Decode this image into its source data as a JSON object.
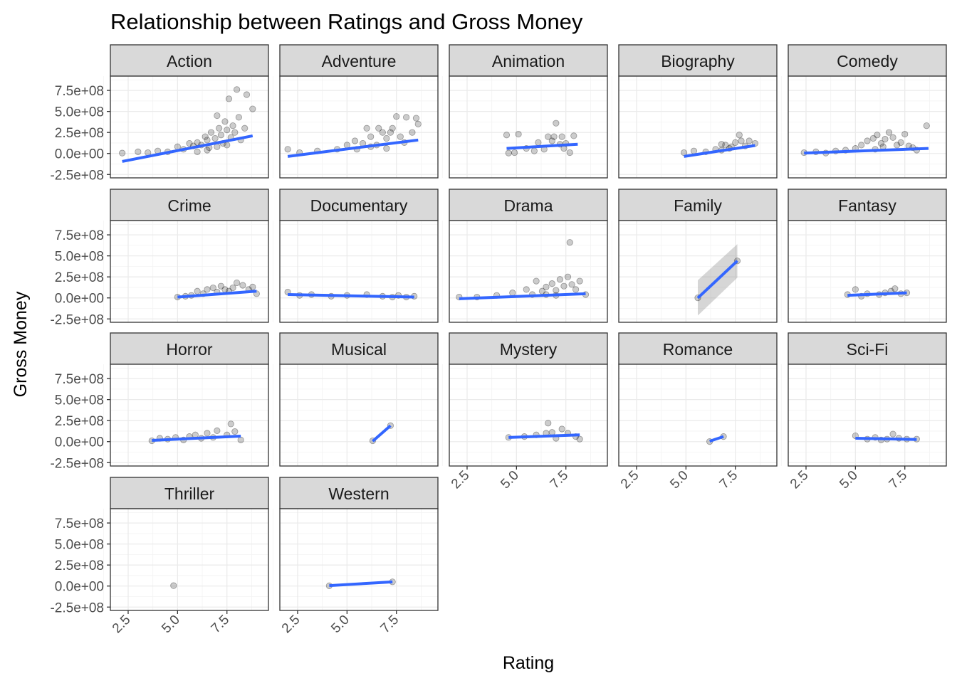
{
  "chart_data": {
    "type": "scatter",
    "title": "Relationship between Ratings and Gross Money",
    "xlabel": "Rating",
    "ylabel": "Gross Money",
    "xlim": [
      1.6,
      9.6
    ],
    "ylim": [
      -290000000,
      920000000
    ],
    "x_ticks": [
      2.5,
      5.0,
      7.5
    ],
    "x_tick_labels": [
      "2.5",
      "5.0",
      "7.5"
    ],
    "y_ticks": [
      -250000000,
      0,
      250000000,
      500000000,
      750000000
    ],
    "y_tick_labels": [
      "-2.5e+08",
      "0.0e+00",
      "2.5e+08",
      "5.0e+08",
      "7.5e+08"
    ],
    "grid": true,
    "facets": [
      {
        "name": "Action",
        "points": [
          [
            2.2,
            5000000.0
          ],
          [
            3.0,
            20000000.0
          ],
          [
            3.5,
            10000000.0
          ],
          [
            4.0,
            30000000.0
          ],
          [
            4.5,
            20000000.0
          ],
          [
            5.0,
            80000000.0
          ],
          [
            5.3,
            50000000.0
          ],
          [
            5.6,
            120000000.0
          ],
          [
            5.8,
            90000000.0
          ],
          [
            6.0,
            130000000.0
          ],
          [
            6.2,
            100000000.0
          ],
          [
            6.4,
            200000000.0
          ],
          [
            6.5,
            160000000.0
          ],
          [
            6.6,
            70000000.0
          ],
          [
            6.7,
            250000000.0
          ],
          [
            6.9,
            180000000.0
          ],
          [
            7.0,
            450000000.0
          ],
          [
            7.1,
            300000000.0
          ],
          [
            7.2,
            220000000.0
          ],
          [
            7.3,
            120000000.0
          ],
          [
            7.4,
            380000000.0
          ],
          [
            7.5,
            280000000.0
          ],
          [
            7.6,
            650000000.0
          ],
          [
            7.7,
            190000000.0
          ],
          [
            7.8,
            330000000.0
          ],
          [
            7.9,
            250000000.0
          ],
          [
            8.0,
            760000000.0
          ],
          [
            8.1,
            430000000.0
          ],
          [
            8.2,
            160000000.0
          ],
          [
            8.4,
            300000000.0
          ],
          [
            8.5,
            700000000.0
          ],
          [
            8.8,
            530000000.0
          ],
          [
            6.0,
            20000000.0
          ],
          [
            6.5,
            40000000.0
          ],
          [
            7.0,
            80000000.0
          ],
          [
            7.5,
            100000000.0
          ]
        ],
        "fit": [
          [
            2.2,
            -95000000.0
          ],
          [
            8.8,
            210000000.0
          ]
        ]
      },
      {
        "name": "Adventure",
        "points": [
          [
            2.0,
            50000000.0
          ],
          [
            2.6,
            10000000.0
          ],
          [
            3.5,
            30000000.0
          ],
          [
            4.5,
            50000000.0
          ],
          [
            5.0,
            100000000.0
          ],
          [
            5.4,
            150000000.0
          ],
          [
            5.8,
            120000000.0
          ],
          [
            6.0,
            300000000.0
          ],
          [
            6.2,
            200000000.0
          ],
          [
            6.5,
            100000000.0
          ],
          [
            6.6,
            300000000.0
          ],
          [
            6.8,
            250000000.0
          ],
          [
            7.0,
            180000000.0
          ],
          [
            7.2,
            250000000.0
          ],
          [
            7.3,
            300000000.0
          ],
          [
            7.5,
            440000000.0
          ],
          [
            7.7,
            200000000.0
          ],
          [
            7.9,
            130000000.0
          ],
          [
            8.0,
            430000000.0
          ],
          [
            8.3,
            250000000.0
          ],
          [
            8.5,
            420000000.0
          ],
          [
            8.6,
            350000000.0
          ],
          [
            5.5,
            50000000.0
          ],
          [
            6.2,
            80000000.0
          ],
          [
            7.0,
            60000000.0
          ]
        ],
        "fit": [
          [
            2.0,
            -35000000.0
          ],
          [
            8.6,
            160000000.0
          ]
        ]
      },
      {
        "name": "Animation",
        "points": [
          [
            4.5,
            220000000.0
          ],
          [
            4.6,
            5000000.0
          ],
          [
            4.9,
            10000000.0
          ],
          [
            5.1,
            230000000.0
          ],
          [
            5.5,
            60000000.0
          ],
          [
            5.9,
            30000000.0
          ],
          [
            6.1,
            130000000.0
          ],
          [
            6.4,
            50000000.0
          ],
          [
            6.6,
            200000000.0
          ],
          [
            6.8,
            150000000.0
          ],
          [
            6.9,
            200000000.0
          ],
          [
            7.0,
            360000000.0
          ],
          [
            7.2,
            110000000.0
          ],
          [
            7.3,
            200000000.0
          ],
          [
            7.5,
            120000000.0
          ],
          [
            7.7,
            10000000.0
          ],
          [
            7.9,
            210000000.0
          ],
          [
            7.4,
            60000000.0
          ]
        ],
        "fit": [
          [
            4.5,
            60000000.0
          ],
          [
            8.1,
            110000000.0
          ]
        ]
      },
      {
        "name": "Biography",
        "points": [
          [
            4.9,
            10000000.0
          ],
          [
            5.4,
            30000000.0
          ],
          [
            6.0,
            20000000.0
          ],
          [
            6.5,
            50000000.0
          ],
          [
            6.8,
            40000000.0
          ],
          [
            7.0,
            100000000.0
          ],
          [
            7.3,
            80000000.0
          ],
          [
            7.5,
            130000000.0
          ],
          [
            7.7,
            220000000.0
          ],
          [
            7.8,
            150000000.0
          ],
          [
            8.0,
            90000000.0
          ],
          [
            8.2,
            150000000.0
          ],
          [
            8.5,
            120000000.0
          ],
          [
            7.2,
            60000000.0
          ],
          [
            6.8,
            110000000.0
          ]
        ],
        "fit": [
          [
            4.9,
            -35000000.0
          ],
          [
            8.5,
            95000000.0
          ]
        ]
      },
      {
        "name": "Comedy",
        "points": [
          [
            2.4,
            10000000.0
          ],
          [
            3.0,
            20000000.0
          ],
          [
            3.5,
            5000000.0
          ],
          [
            4.0,
            30000000.0
          ],
          [
            4.5,
            40000000.0
          ],
          [
            5.0,
            60000000.0
          ],
          [
            5.3,
            100000000.0
          ],
          [
            5.6,
            150000000.0
          ],
          [
            5.9,
            180000000.0
          ],
          [
            6.1,
            220000000.0
          ],
          [
            6.3,
            120000000.0
          ],
          [
            6.5,
            170000000.0
          ],
          [
            6.7,
            250000000.0
          ],
          [
            6.9,
            190000000.0
          ],
          [
            7.1,
            100000000.0
          ],
          [
            7.3,
            130000000.0
          ],
          [
            7.5,
            230000000.0
          ],
          [
            7.7,
            90000000.0
          ],
          [
            7.9,
            70000000.0
          ],
          [
            8.1,
            40000000.0
          ],
          [
            8.6,
            330000000.0
          ],
          [
            6.0,
            50000000.0
          ],
          [
            6.4,
            80000000.0
          ]
        ],
        "fit": [
          [
            2.4,
            5000000.0
          ],
          [
            8.7,
            60000000.0
          ]
        ]
      },
      {
        "name": "Crime",
        "points": [
          [
            5.0,
            10000000.0
          ],
          [
            5.4,
            20000000.0
          ],
          [
            5.7,
            30000000.0
          ],
          [
            6.0,
            80000000.0
          ],
          [
            6.3,
            50000000.0
          ],
          [
            6.5,
            100000000.0
          ],
          [
            6.8,
            120000000.0
          ],
          [
            7.0,
            70000000.0
          ],
          [
            7.2,
            140000000.0
          ],
          [
            7.4,
            100000000.0
          ],
          [
            7.6,
            80000000.0
          ],
          [
            7.8,
            120000000.0
          ],
          [
            8.0,
            180000000.0
          ],
          [
            8.3,
            150000000.0
          ],
          [
            8.6,
            100000000.0
          ],
          [
            8.8,
            130000000.0
          ],
          [
            9.0,
            50000000.0
          ]
        ],
        "fit": [
          [
            5.0,
            10000000.0
          ],
          [
            9.0,
            80000000.0
          ]
        ]
      },
      {
        "name": "Documentary",
        "points": [
          [
            2.0,
            70000000.0
          ],
          [
            2.6,
            30000000.0
          ],
          [
            3.2,
            40000000.0
          ],
          [
            4.2,
            20000000.0
          ],
          [
            5.0,
            30000000.0
          ],
          [
            6.0,
            40000000.0
          ],
          [
            6.8,
            20000000.0
          ],
          [
            7.3,
            10000000.0
          ],
          [
            7.6,
            30000000.0
          ],
          [
            8.0,
            10000000.0
          ],
          [
            8.4,
            20000000.0
          ]
        ],
        "fit": [
          [
            2.0,
            40000000.0
          ],
          [
            8.4,
            10000000.0
          ]
        ]
      },
      {
        "name": "Drama",
        "points": [
          [
            2.1,
            10000000.0
          ],
          [
            3.0,
            10000000.0
          ],
          [
            4.0,
            30000000.0
          ],
          [
            4.8,
            60000000.0
          ],
          [
            5.5,
            100000000.0
          ],
          [
            5.8,
            40000000.0
          ],
          [
            6.0,
            200000000.0
          ],
          [
            6.3,
            80000000.0
          ],
          [
            6.5,
            130000000.0
          ],
          [
            6.8,
            170000000.0
          ],
          [
            7.0,
            90000000.0
          ],
          [
            7.2,
            220000000.0
          ],
          [
            7.4,
            140000000.0
          ],
          [
            7.6,
            250000000.0
          ],
          [
            7.7,
            660000000.0
          ],
          [
            7.8,
            160000000.0
          ],
          [
            8.0,
            100000000.0
          ],
          [
            8.2,
            200000000.0
          ],
          [
            8.5,
            40000000.0
          ],
          [
            6.5,
            40000000.0
          ],
          [
            7.0,
            30000000.0
          ]
        ],
        "fit": [
          [
            2.1,
            -10000000.0
          ],
          [
            8.5,
            50000000.0
          ]
        ]
      },
      {
        "name": "Family",
        "points": [
          [
            5.6,
            1000000.0
          ],
          [
            7.6,
            440000000.0
          ]
        ],
        "fit": [
          [
            5.6,
            -1000000.0
          ],
          [
            7.6,
            440000000.0
          ]
        ],
        "band": [
          [
            5.6,
            -210000000.0,
            210000000.0
          ],
          [
            7.6,
            240000000.0,
            640000000.0
          ]
        ]
      },
      {
        "name": "Fantasy",
        "points": [
          [
            4.6,
            40000000.0
          ],
          [
            5.0,
            100000000.0
          ],
          [
            5.3,
            20000000.0
          ],
          [
            5.6,
            50000000.0
          ],
          [
            6.2,
            40000000.0
          ],
          [
            6.5,
            60000000.0
          ],
          [
            6.8,
            80000000.0
          ],
          [
            7.0,
            110000000.0
          ],
          [
            7.3,
            50000000.0
          ],
          [
            7.6,
            60000000.0
          ]
        ],
        "fit": [
          [
            4.6,
            30000000.0
          ],
          [
            7.6,
            60000000.0
          ]
        ]
      },
      {
        "name": "Horror",
        "points": [
          [
            3.7,
            10000000.0
          ],
          [
            4.1,
            40000000.0
          ],
          [
            4.5,
            30000000.0
          ],
          [
            4.9,
            50000000.0
          ],
          [
            5.3,
            20000000.0
          ],
          [
            5.6,
            60000000.0
          ],
          [
            5.9,
            80000000.0
          ],
          [
            6.2,
            40000000.0
          ],
          [
            6.5,
            100000000.0
          ],
          [
            6.8,
            50000000.0
          ],
          [
            7.0,
            130000000.0
          ],
          [
            7.5,
            80000000.0
          ],
          [
            7.7,
            210000000.0
          ],
          [
            7.9,
            120000000.0
          ],
          [
            8.2,
            20000000.0
          ]
        ],
        "fit": [
          [
            3.7,
            15000000.0
          ],
          [
            8.2,
            65000000.0
          ]
        ]
      },
      {
        "name": "Musical",
        "points": [
          [
            6.3,
            10000000.0
          ],
          [
            7.2,
            190000000.0
          ]
        ],
        "fit": [
          [
            6.3,
            5000000.0
          ],
          [
            7.2,
            190000000.0
          ]
        ]
      },
      {
        "name": "Mystery",
        "points": [
          [
            4.6,
            50000000.0
          ],
          [
            5.4,
            60000000.0
          ],
          [
            6.0,
            80000000.0
          ],
          [
            6.5,
            100000000.0
          ],
          [
            6.6,
            220000000.0
          ],
          [
            6.8,
            110000000.0
          ],
          [
            7.0,
            40000000.0
          ],
          [
            7.3,
            150000000.0
          ],
          [
            7.6,
            100000000.0
          ],
          [
            8.0,
            60000000.0
          ],
          [
            8.2,
            30000000.0
          ]
        ],
        "fit": [
          [
            4.6,
            50000000.0
          ],
          [
            8.2,
            80000000.0
          ]
        ]
      },
      {
        "name": "Romance",
        "points": [
          [
            6.2,
            1000000.0
          ],
          [
            6.9,
            60000000.0
          ]
        ],
        "fit": [
          [
            6.2,
            5000000.0
          ],
          [
            6.9,
            60000000.0
          ]
        ]
      },
      {
        "name": "Sci-Fi",
        "points": [
          [
            5.0,
            70000000.0
          ],
          [
            5.6,
            30000000.0
          ],
          [
            6.0,
            50000000.0
          ],
          [
            6.3,
            20000000.0
          ],
          [
            6.6,
            30000000.0
          ],
          [
            6.9,
            90000000.0
          ],
          [
            7.2,
            40000000.0
          ],
          [
            7.6,
            30000000.0
          ],
          [
            8.1,
            30000000.0
          ]
        ],
        "fit": [
          [
            5.0,
            40000000.0
          ],
          [
            8.1,
            25000000.0
          ]
        ]
      },
      {
        "name": "Thriller",
        "points": [
          [
            4.8,
            5000000.0
          ]
        ]
      },
      {
        "name": "Western",
        "points": [
          [
            4.1,
            3000000.0
          ],
          [
            7.3,
            50000000.0
          ]
        ],
        "fit": [
          [
            4.1,
            5000000.0
          ],
          [
            7.3,
            50000000.0
          ]
        ]
      }
    ]
  },
  "colors": {
    "fit_line": "#3366ff",
    "band": "#999999",
    "point": "#000000",
    "strip_bg": "#d9d9d9",
    "panel_border": "#333333",
    "grid": "#ebebeb"
  }
}
